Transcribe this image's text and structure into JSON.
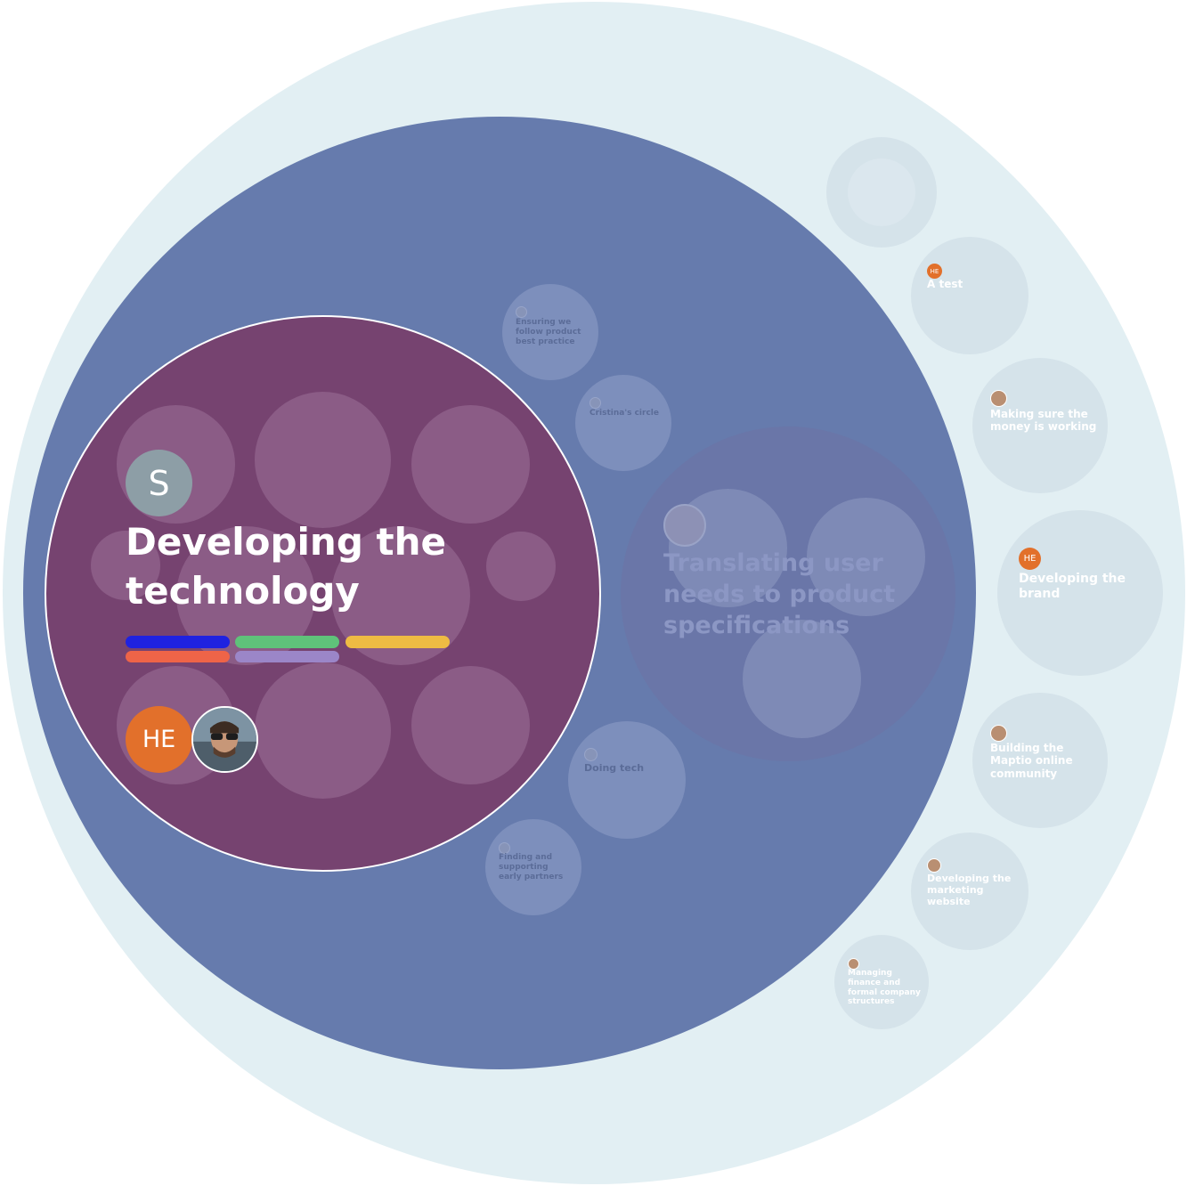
{
  "focused_circle": {
    "title": "Developing the technology",
    "lead_initial": "S",
    "members": [
      {
        "initials": "HE",
        "color": "#e2702b"
      },
      {
        "type": "photo"
      }
    ],
    "tag_colors": [
      "#1f22e0",
      "#5fc27a",
      "#eebb43",
      "#ee6448",
      "#9b86c8"
    ]
  },
  "inner_circles": [
    {
      "label": "Ensuring we follow product best practice"
    },
    {
      "label": "Cristina's circle"
    },
    {
      "label": "Translating user needs to product specifications"
    },
    {
      "label": "Doing tech"
    },
    {
      "label": "Finding and supporting early partners"
    }
  ],
  "outer_circles": [
    {
      "label": "A test",
      "avatar": "HE"
    },
    {
      "label": "Making sure the money is working"
    },
    {
      "label": "Developing the brand",
      "avatar": "HE"
    },
    {
      "label": "Building the Maptio online community"
    },
    {
      "label": "Developing the marketing website"
    },
    {
      "label": "Managing finance and formal company structures"
    }
  ],
  "colors": {
    "outer_bg": "#e2eff3",
    "main_circle": "#667bad",
    "focused_circle": "#764370",
    "accent_orange": "#e2702b"
  }
}
